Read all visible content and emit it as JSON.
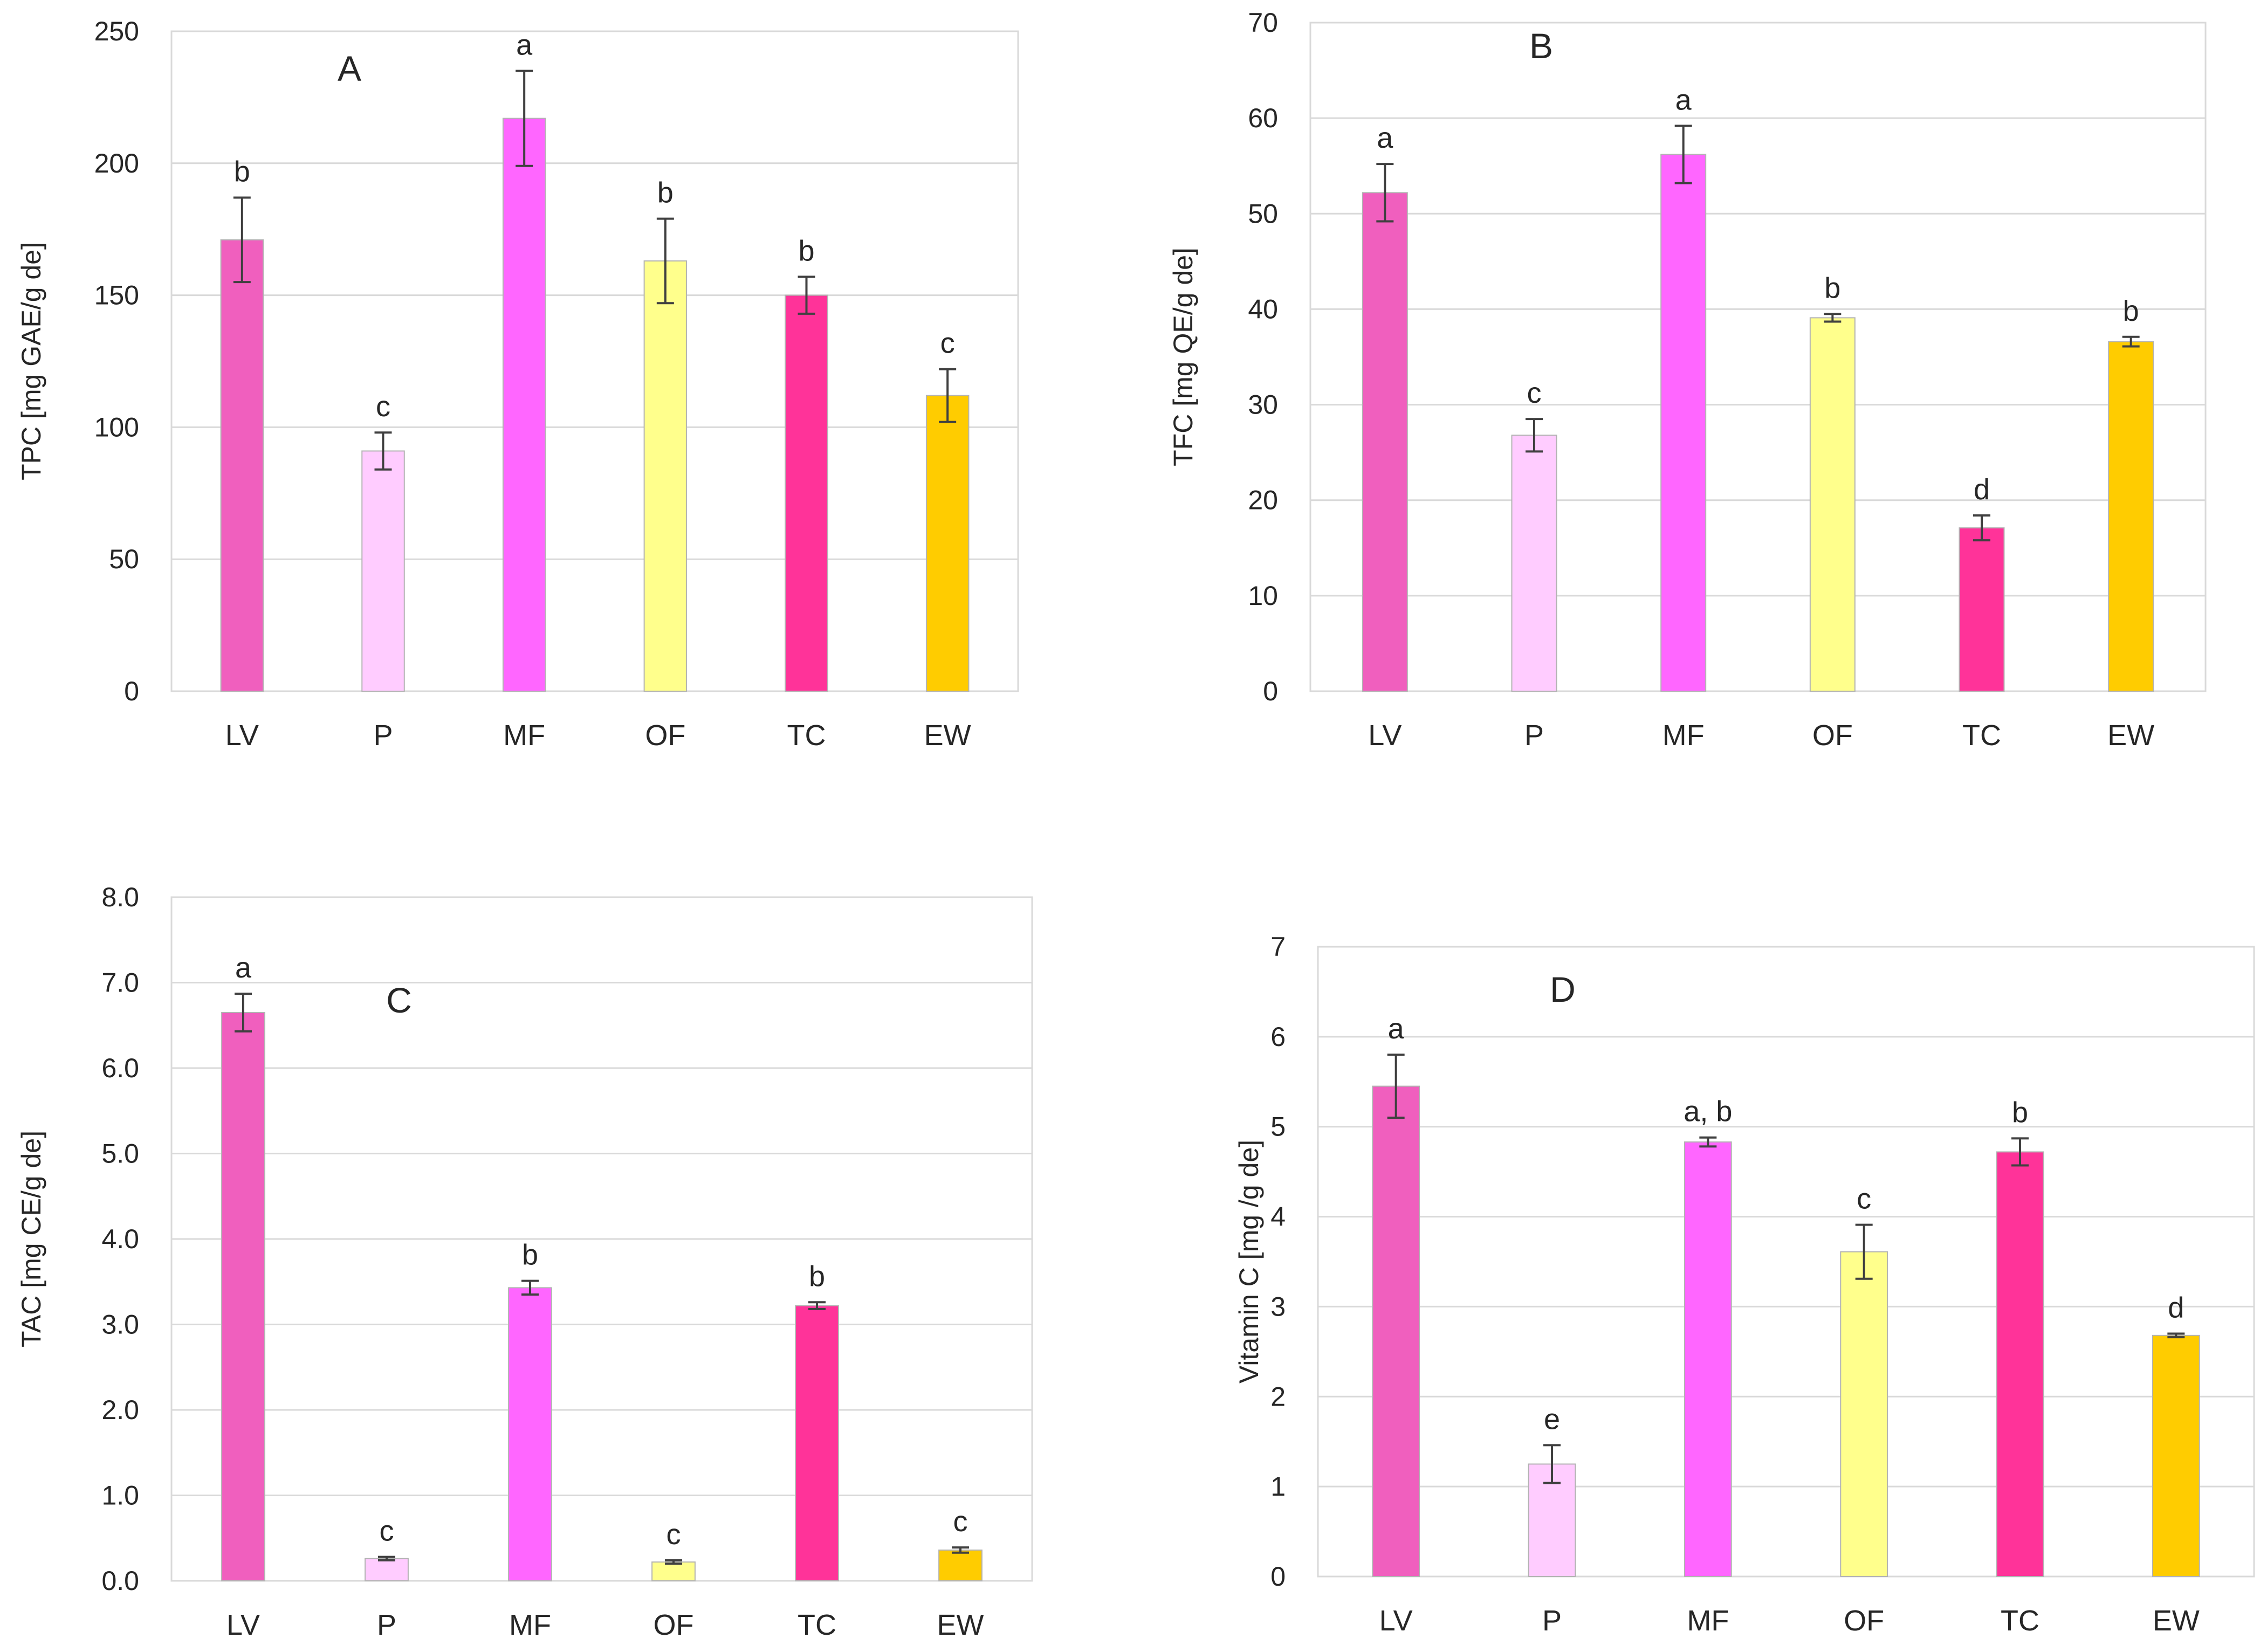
{
  "chart_data": [
    {
      "type": "bar",
      "panel_label": "A",
      "ylabel": "TPC [mg GAE/g de]",
      "ylim": [
        0,
        250
      ],
      "yticks": [
        "0",
        "50",
        "100",
        "150",
        "200",
        "250"
      ],
      "categories": [
        "LV",
        "P",
        "MF",
        "OF",
        "TC",
        "EW"
      ],
      "values": [
        171,
        91,
        217,
        163,
        150,
        112
      ],
      "errors": [
        16,
        7,
        18,
        16,
        7,
        10
      ],
      "significance": [
        "b",
        "c",
        "a",
        "b",
        "b",
        "c"
      ],
      "colors": [
        "#f05fbe",
        "#ffccff",
        "#ff66ff",
        "#ffff8c",
        "#ff3399",
        "#ffcc00"
      ]
    },
    {
      "type": "bar",
      "panel_label": "B",
      "ylabel": "TFC [mg QE/g de]",
      "ylim": [
        0,
        70
      ],
      "yticks": [
        "0",
        "10",
        "20",
        "30",
        "40",
        "50",
        "60",
        "70"
      ],
      "categories": [
        "LV",
        "P",
        "MF",
        "OF",
        "TC",
        "EW"
      ],
      "values": [
        52.2,
        26.8,
        56.2,
        39.1,
        17.1,
        36.6
      ],
      "errors": [
        3.0,
        1.7,
        3.0,
        0.4,
        1.3,
        0.5
      ],
      "significance": [
        "a",
        "c",
        "a",
        "b",
        "d",
        "b"
      ],
      "colors": [
        "#f05fbe",
        "#ffccff",
        "#ff66ff",
        "#ffff8c",
        "#ff3399",
        "#ffcc00"
      ]
    },
    {
      "type": "bar",
      "panel_label": "C",
      "ylabel": "TAC [mg CE/g de]",
      "ylim": [
        0,
        8
      ],
      "yticks": [
        "0.0",
        "1.0",
        "2.0",
        "3.0",
        "4.0",
        "5.0",
        "6.0",
        "7.0",
        "8.0"
      ],
      "categories": [
        "LV",
        "P",
        "MF",
        "OF",
        "TC",
        "EW"
      ],
      "values": [
        6.65,
        0.26,
        3.43,
        0.22,
        3.22,
        0.36
      ],
      "errors": [
        0.22,
        0.02,
        0.08,
        0.02,
        0.04,
        0.03
      ],
      "significance": [
        "a",
        "c",
        "b",
        "c",
        "b",
        "c"
      ],
      "colors": [
        "#f05fbe",
        "#ffccff",
        "#ff66ff",
        "#ffff8c",
        "#ff3399",
        "#ffcc00"
      ]
    },
    {
      "type": "bar",
      "panel_label": "D",
      "ylabel": "Vitamin C [mg /g de]",
      "ylim": [
        0,
        7
      ],
      "yticks": [
        "0",
        "1",
        "2",
        "3",
        "4",
        "5",
        "6",
        "7"
      ],
      "categories": [
        "LV",
        "P",
        "MF",
        "OF",
        "TC",
        "EW"
      ],
      "values": [
        5.45,
        1.25,
        4.83,
        3.61,
        4.72,
        2.68
      ],
      "errors": [
        0.35,
        0.21,
        0.05,
        0.3,
        0.15,
        0.02
      ],
      "significance": [
        "a",
        "e",
        "a, b",
        "c",
        "b",
        "d"
      ],
      "colors": [
        "#f05fbe",
        "#ffccff",
        "#ff66ff",
        "#ffff8c",
        "#ff3399",
        "#ffcc00"
      ]
    }
  ]
}
